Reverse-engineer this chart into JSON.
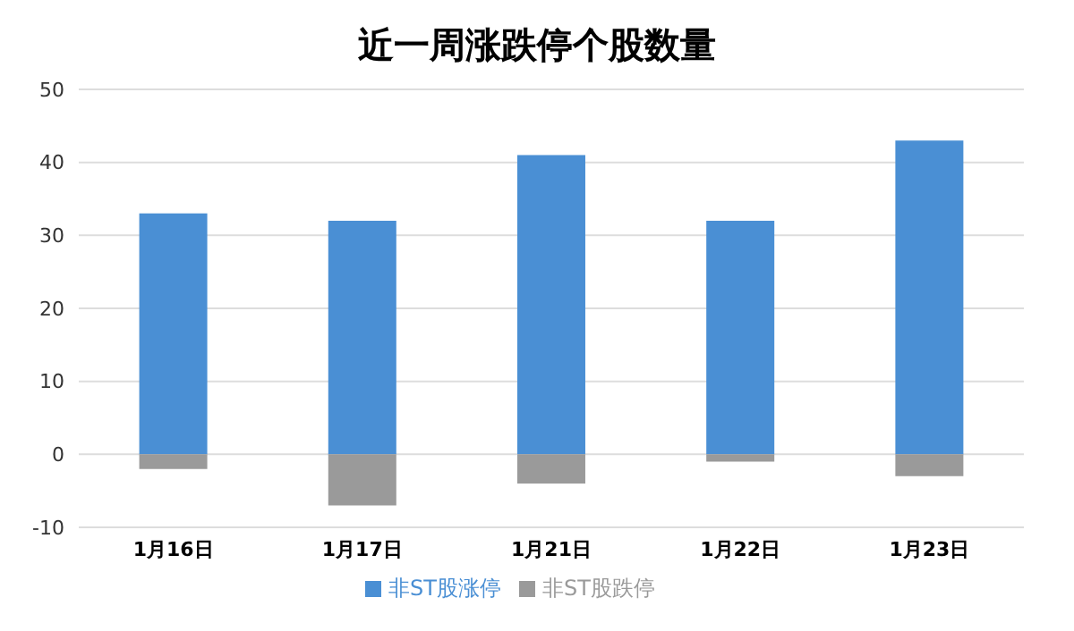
{
  "chart_data": {
    "type": "bar",
    "title": "近一周涨跌停个股数量",
    "categories": [
      "1月16日",
      "1月17日",
      "1月21日",
      "1月22日",
      "1月23日"
    ],
    "stacked": true,
    "series": [
      {
        "name": "非ST股涨停",
        "color": "#4a8fd4",
        "values": [
          33,
          32,
          41,
          32,
          43
        ]
      },
      {
        "name": "非ST股跌停",
        "color": "#9a9a9a",
        "values": [
          -2,
          -7,
          -4,
          -1,
          -3
        ]
      }
    ],
    "ylim": [
      -10,
      50
    ],
    "yticks": [
      -10,
      0,
      10,
      20,
      30,
      40,
      50
    ],
    "grid": "y",
    "legend": "bottom"
  }
}
